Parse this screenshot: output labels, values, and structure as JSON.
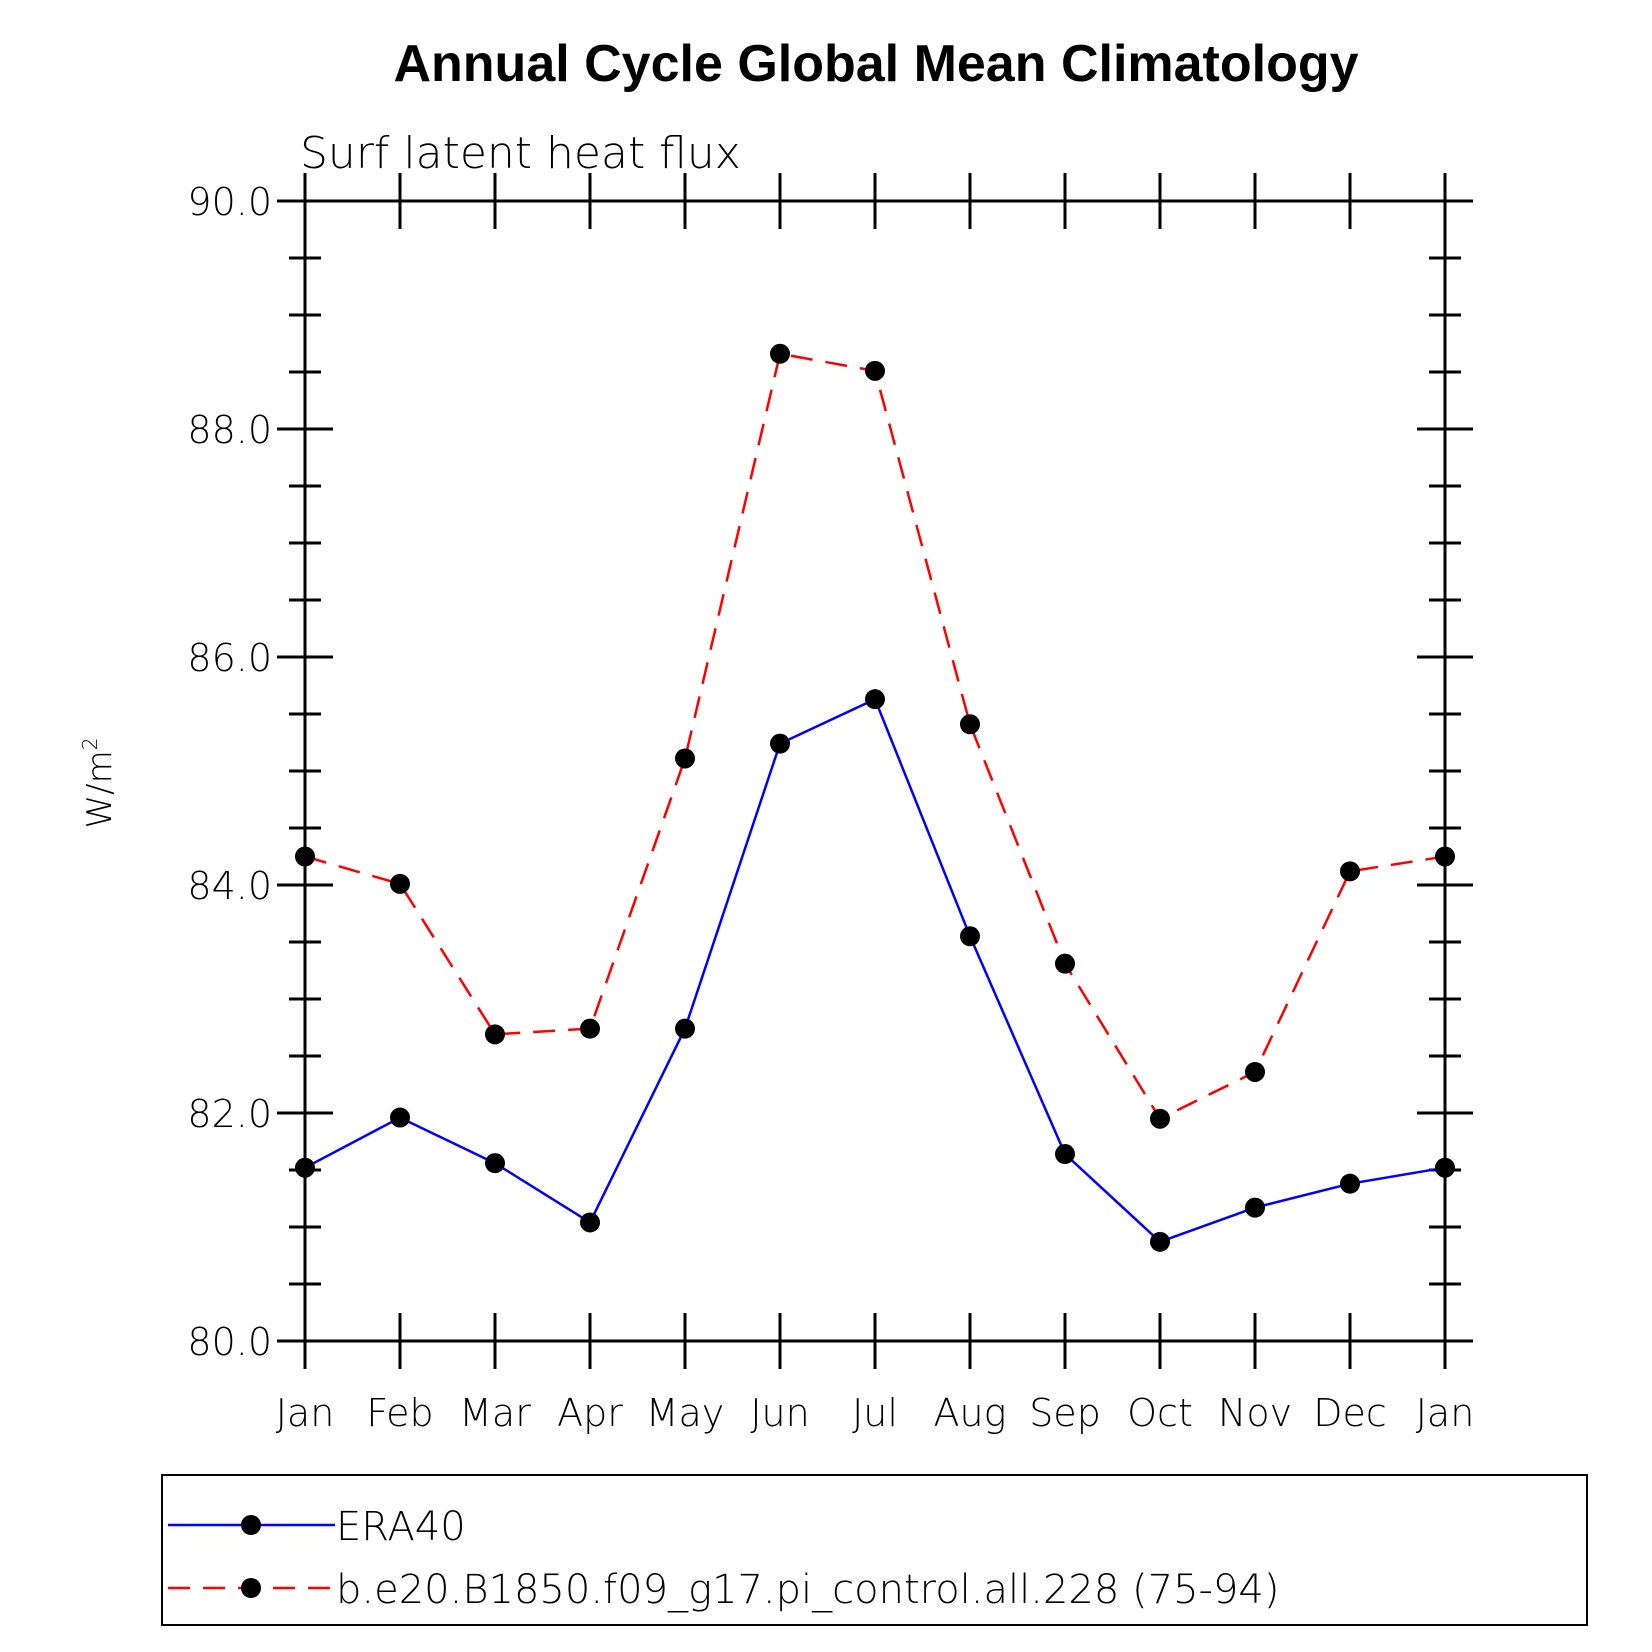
{
  "chart_data": {
    "type": "line",
    "title": "Annual Cycle Global Mean Climatology",
    "subtitle": "Surf latent heat flux",
    "ylabel": "W/m",
    "ylabel_superscript": "2",
    "xlabel": "",
    "categories": [
      "Jan",
      "Feb",
      "Mar",
      "Apr",
      "May",
      "Jun",
      "Jul",
      "Aug",
      "Sep",
      "Oct",
      "Nov",
      "Dec",
      "Jan"
    ],
    "ylim": [
      80,
      90
    ],
    "yticks": [
      "80.0",
      "82.0",
      "84.0",
      "86.0",
      "88.0",
      "90.0"
    ],
    "grid": false,
    "legend_position": "bottom",
    "series": [
      {
        "name": "ERA40",
        "color": "#0000ff",
        "line_style": "solid",
        "marker": "filled-circle",
        "values": [
          81.52,
          81.96,
          81.56,
          81.04,
          82.74,
          85.24,
          85.63,
          83.55,
          81.64,
          80.87,
          81.17,
          81.38,
          81.52
        ]
      },
      {
        "name": "b.e20.B1850.f09_g17.pi_control.all.228 (75-94)",
        "color": "#ff0000",
        "line_style": "dashed",
        "marker": "filled-circle",
        "values": [
          84.25,
          84.01,
          82.69,
          82.74,
          85.11,
          88.66,
          88.51,
          85.41,
          83.31,
          81.95,
          82.36,
          84.12,
          84.25
        ]
      }
    ]
  }
}
